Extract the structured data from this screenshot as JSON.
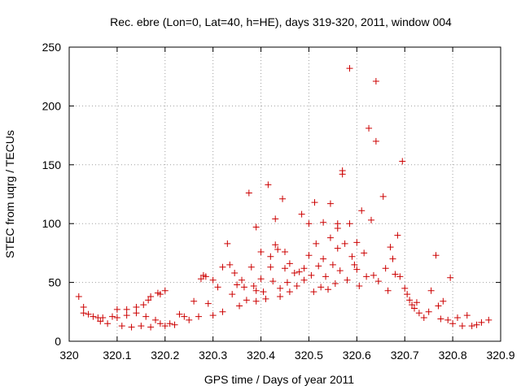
{
  "chart_data": {
    "type": "scatter",
    "title": "Rec. ebre (Lon=0, Lat=40, h=HE), days 319-320, 2011, window 004",
    "xlabel": "GPS time / Days of year 2011",
    "ylabel": "STEC from uqrg / TECUs",
    "xlim": [
      320,
      320.9
    ],
    "ylim": [
      0,
      250
    ],
    "xticks": [
      "320",
      "320.1",
      "320.2",
      "320.3",
      "320.4",
      "320.5",
      "320.6",
      "320.7",
      "320.8",
      "320.9"
    ],
    "yticks": [
      "0",
      "50",
      "100",
      "150",
      "200",
      "250"
    ],
    "grid": true,
    "marker": "+",
    "marker_color": "#cc0000",
    "points": [
      [
        320.02,
        38
      ],
      [
        320.03,
        29
      ],
      [
        320.03,
        24
      ],
      [
        320.04,
        23
      ],
      [
        320.05,
        21
      ],
      [
        320.06,
        20
      ],
      [
        320.065,
        17
      ],
      [
        320.07,
        20
      ],
      [
        320.08,
        15
      ],
      [
        320.09,
        21
      ],
      [
        320.1,
        27
      ],
      [
        320.1,
        20
      ],
      [
        320.11,
        13
      ],
      [
        320.12,
        27
      ],
      [
        320.12,
        22
      ],
      [
        320.13,
        12
      ],
      [
        320.14,
        29
      ],
      [
        320.14,
        24
      ],
      [
        320.15,
        13
      ],
      [
        320.155,
        31
      ],
      [
        320.16,
        21
      ],
      [
        320.165,
        35
      ],
      [
        320.17,
        38
      ],
      [
        320.17,
        12
      ],
      [
        320.18,
        18
      ],
      [
        320.185,
        41
      ],
      [
        320.19,
        40
      ],
      [
        320.19,
        15
      ],
      [
        320.2,
        43
      ],
      [
        320.2,
        13
      ],
      [
        320.21,
        15
      ],
      [
        320.22,
        14
      ],
      [
        320.23,
        23
      ],
      [
        320.24,
        21
      ],
      [
        320.25,
        18
      ],
      [
        320.26,
        34
      ],
      [
        320.27,
        21
      ],
      [
        320.275,
        53
      ],
      [
        320.28,
        56
      ],
      [
        320.285,
        55
      ],
      [
        320.29,
        32
      ],
      [
        320.3,
        52
      ],
      [
        320.3,
        22
      ],
      [
        320.31,
        46
      ],
      [
        320.32,
        63
      ],
      [
        320.32,
        25
      ],
      [
        320.33,
        83
      ],
      [
        320.335,
        65
      ],
      [
        320.34,
        40
      ],
      [
        320.345,
        58
      ],
      [
        320.35,
        48
      ],
      [
        320.355,
        30
      ],
      [
        320.36,
        52
      ],
      [
        320.365,
        46
      ],
      [
        320.37,
        35
      ],
      [
        320.375,
        126
      ],
      [
        320.38,
        63
      ],
      [
        320.385,
        47
      ],
      [
        320.39,
        97
      ],
      [
        320.39,
        43
      ],
      [
        320.39,
        34
      ],
      [
        320.4,
        76
      ],
      [
        320.4,
        53
      ],
      [
        320.405,
        42
      ],
      [
        320.41,
        36
      ],
      [
        320.415,
        133
      ],
      [
        320.42,
        72
      ],
      [
        320.42,
        63
      ],
      [
        320.425,
        51
      ],
      [
        320.43,
        104
      ],
      [
        320.43,
        82
      ],
      [
        320.435,
        78
      ],
      [
        320.44,
        45
      ],
      [
        320.44,
        38
      ],
      [
        320.445,
        121
      ],
      [
        320.45,
        76
      ],
      [
        320.45,
        62
      ],
      [
        320.455,
        50
      ],
      [
        320.46,
        66
      ],
      [
        320.46,
        42
      ],
      [
        320.47,
        58
      ],
      [
        320.475,
        47
      ],
      [
        320.48,
        59
      ],
      [
        320.485,
        108
      ],
      [
        320.49,
        62
      ],
      [
        320.49,
        52
      ],
      [
        320.5,
        100
      ],
      [
        320.5,
        73
      ],
      [
        320.505,
        56
      ],
      [
        320.51,
        42
      ],
      [
        320.512,
        118
      ],
      [
        320.515,
        83
      ],
      [
        320.52,
        64
      ],
      [
        320.525,
        46
      ],
      [
        320.53,
        101
      ],
      [
        320.53,
        70
      ],
      [
        320.535,
        55
      ],
      [
        320.54,
        44
      ],
      [
        320.545,
        117
      ],
      [
        320.545,
        88
      ],
      [
        320.55,
        65
      ],
      [
        320.555,
        49
      ],
      [
        320.56,
        100
      ],
      [
        320.56,
        96
      ],
      [
        320.56,
        79
      ],
      [
        320.565,
        60
      ],
      [
        320.57,
        145
      ],
      [
        320.57,
        142
      ],
      [
        320.575,
        83
      ],
      [
        320.58,
        52
      ],
      [
        320.585,
        232
      ],
      [
        320.585,
        100
      ],
      [
        320.59,
        72
      ],
      [
        320.595,
        65
      ],
      [
        320.6,
        84
      ],
      [
        320.6,
        61
      ],
      [
        320.605,
        47
      ],
      [
        320.61,
        111
      ],
      [
        320.615,
        75
      ],
      [
        320.62,
        55
      ],
      [
        320.625,
        181
      ],
      [
        320.63,
        103
      ],
      [
        320.635,
        56
      ],
      [
        320.64,
        221
      ],
      [
        320.64,
        170
      ],
      [
        320.645,
        51
      ],
      [
        320.655,
        123
      ],
      [
        320.66,
        62
      ],
      [
        320.665,
        43
      ],
      [
        320.67,
        80
      ],
      [
        320.675,
        70
      ],
      [
        320.68,
        57
      ],
      [
        320.685,
        90
      ],
      [
        320.69,
        55
      ],
      [
        320.695,
        153
      ],
      [
        320.7,
        45
      ],
      [
        320.705,
        40
      ],
      [
        320.71,
        35
      ],
      [
        320.715,
        31
      ],
      [
        320.72,
        28
      ],
      [
        320.725,
        33
      ],
      [
        320.73,
        24
      ],
      [
        320.74,
        20
      ],
      [
        320.75,
        25
      ],
      [
        320.755,
        43
      ],
      [
        320.765,
        73
      ],
      [
        320.77,
        30
      ],
      [
        320.775,
        19
      ],
      [
        320.78,
        34
      ],
      [
        320.79,
        18
      ],
      [
        320.795,
        54
      ],
      [
        320.8,
        15
      ],
      [
        320.81,
        20
      ],
      [
        320.82,
        13
      ],
      [
        320.83,
        22
      ],
      [
        320.84,
        13
      ],
      [
        320.85,
        14
      ],
      [
        320.86,
        16
      ],
      [
        320.875,
        18
      ]
    ]
  }
}
